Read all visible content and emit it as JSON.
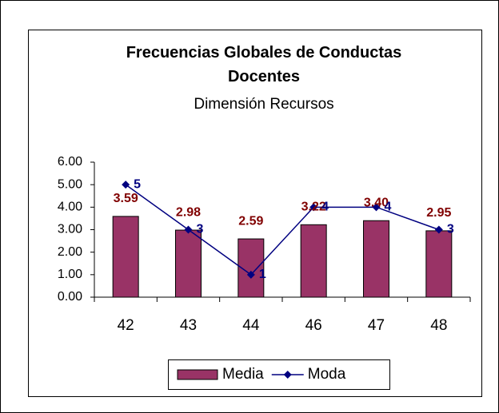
{
  "chart_data": {
    "type": "bar-line",
    "title": "Frecuencias Globales de Conductas Docentes",
    "subtitle": "Dimensión Recursos",
    "categories": [
      "42",
      "43",
      "44",
      "46",
      "47",
      "48"
    ],
    "series": [
      {
        "name": "Media",
        "type": "bar",
        "color": "#993366",
        "values": [
          3.59,
          2.98,
          2.59,
          3.22,
          3.4,
          2.95
        ],
        "value_labels": [
          "3.59",
          "2.98",
          "2.59",
          "3.22",
          "3.40",
          "2.95"
        ],
        "label_color": "#800000"
      },
      {
        "name": "Moda",
        "type": "line",
        "color": "#000080",
        "values": [
          5,
          3,
          1,
          4,
          4,
          3
        ],
        "label_color": "#000080"
      }
    ],
    "ylim": [
      0,
      6
    ],
    "yticks": [
      {
        "value": 0,
        "label": "0.00"
      },
      {
        "value": 1,
        "label": "1.00"
      },
      {
        "value": 2,
        "label": "2.00"
      },
      {
        "value": 3,
        "label": "3.00"
      },
      {
        "value": 4,
        "label": "4.00"
      },
      {
        "value": 5,
        "label": "5.00"
      },
      {
        "value": 6,
        "label": "6.00"
      }
    ],
    "grid": false,
    "legend": "bottom"
  }
}
